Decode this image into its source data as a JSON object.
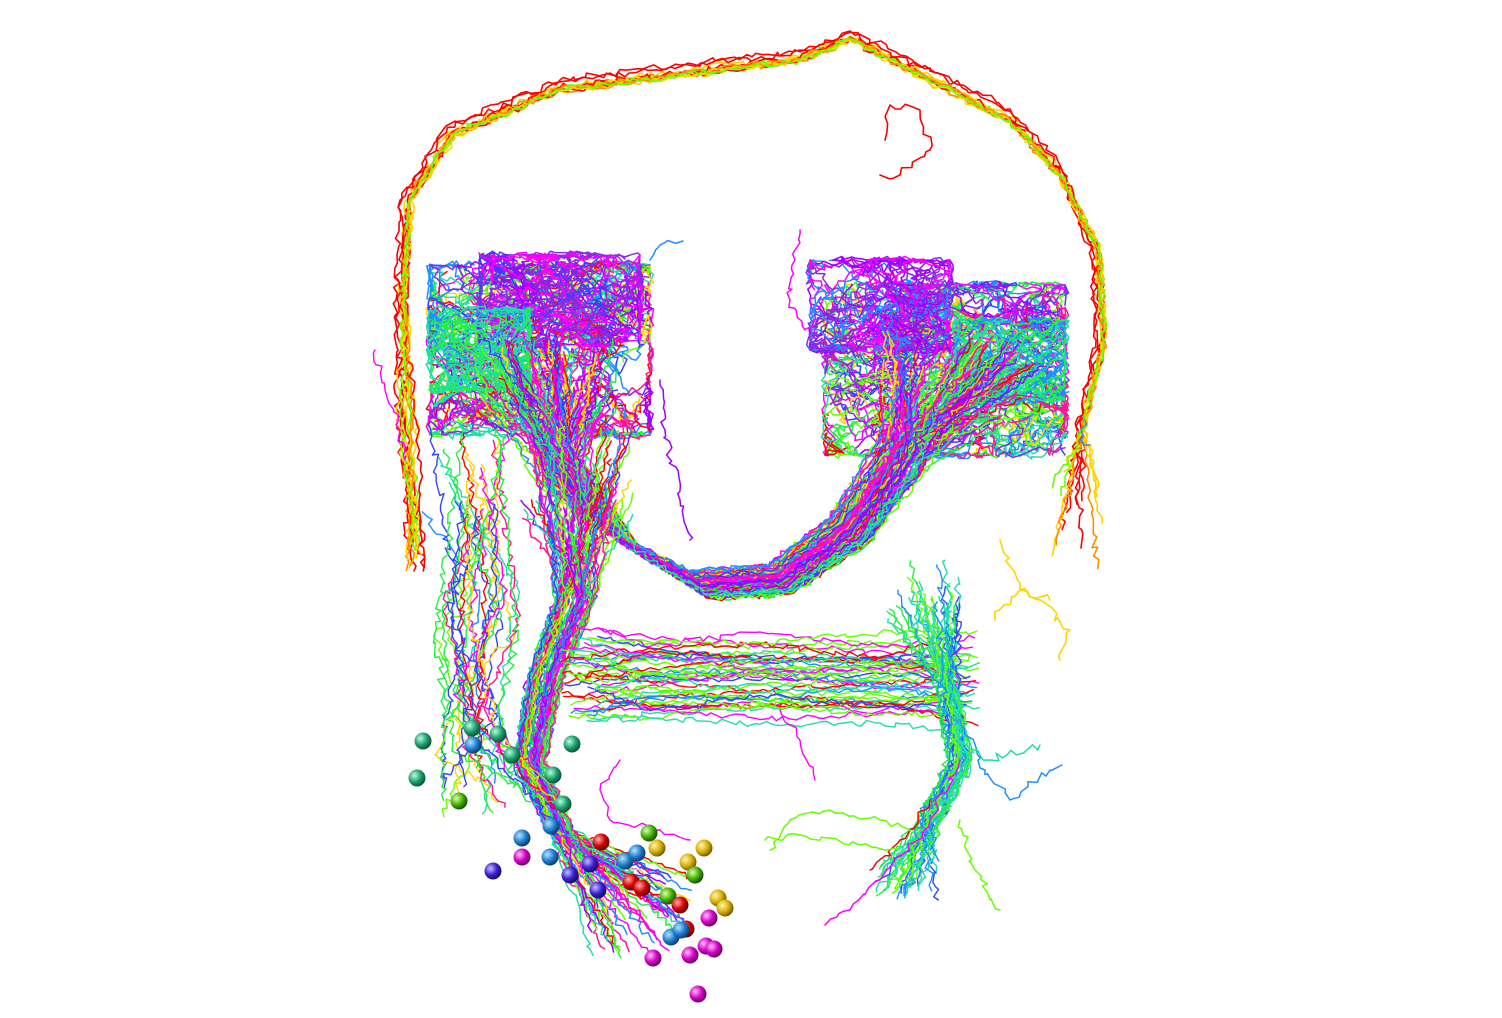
{
  "scene": {
    "background": "#ffffff",
    "palette": {
      "red": "#ff0000",
      "orange": "#ff8c00",
      "yellow": "#ffd400",
      "lime": "#66ff00",
      "green": "#22ee44",
      "teal": "#22ddaa",
      "azure": "#1e90ff",
      "blue": "#3344ff",
      "violet": "#8a2be2",
      "purple": "#a000ff",
      "magenta": "#ff00ff",
      "pink": "#ff1493"
    },
    "soma_colors": {
      "green": "#1f9e6e",
      "azure": "#1e7fd0",
      "red": "#d60000",
      "yellow": "#d7b000",
      "magenta": "#d400c8",
      "blue": "#3a1fd0",
      "lime": "#3fb000"
    }
  }
}
